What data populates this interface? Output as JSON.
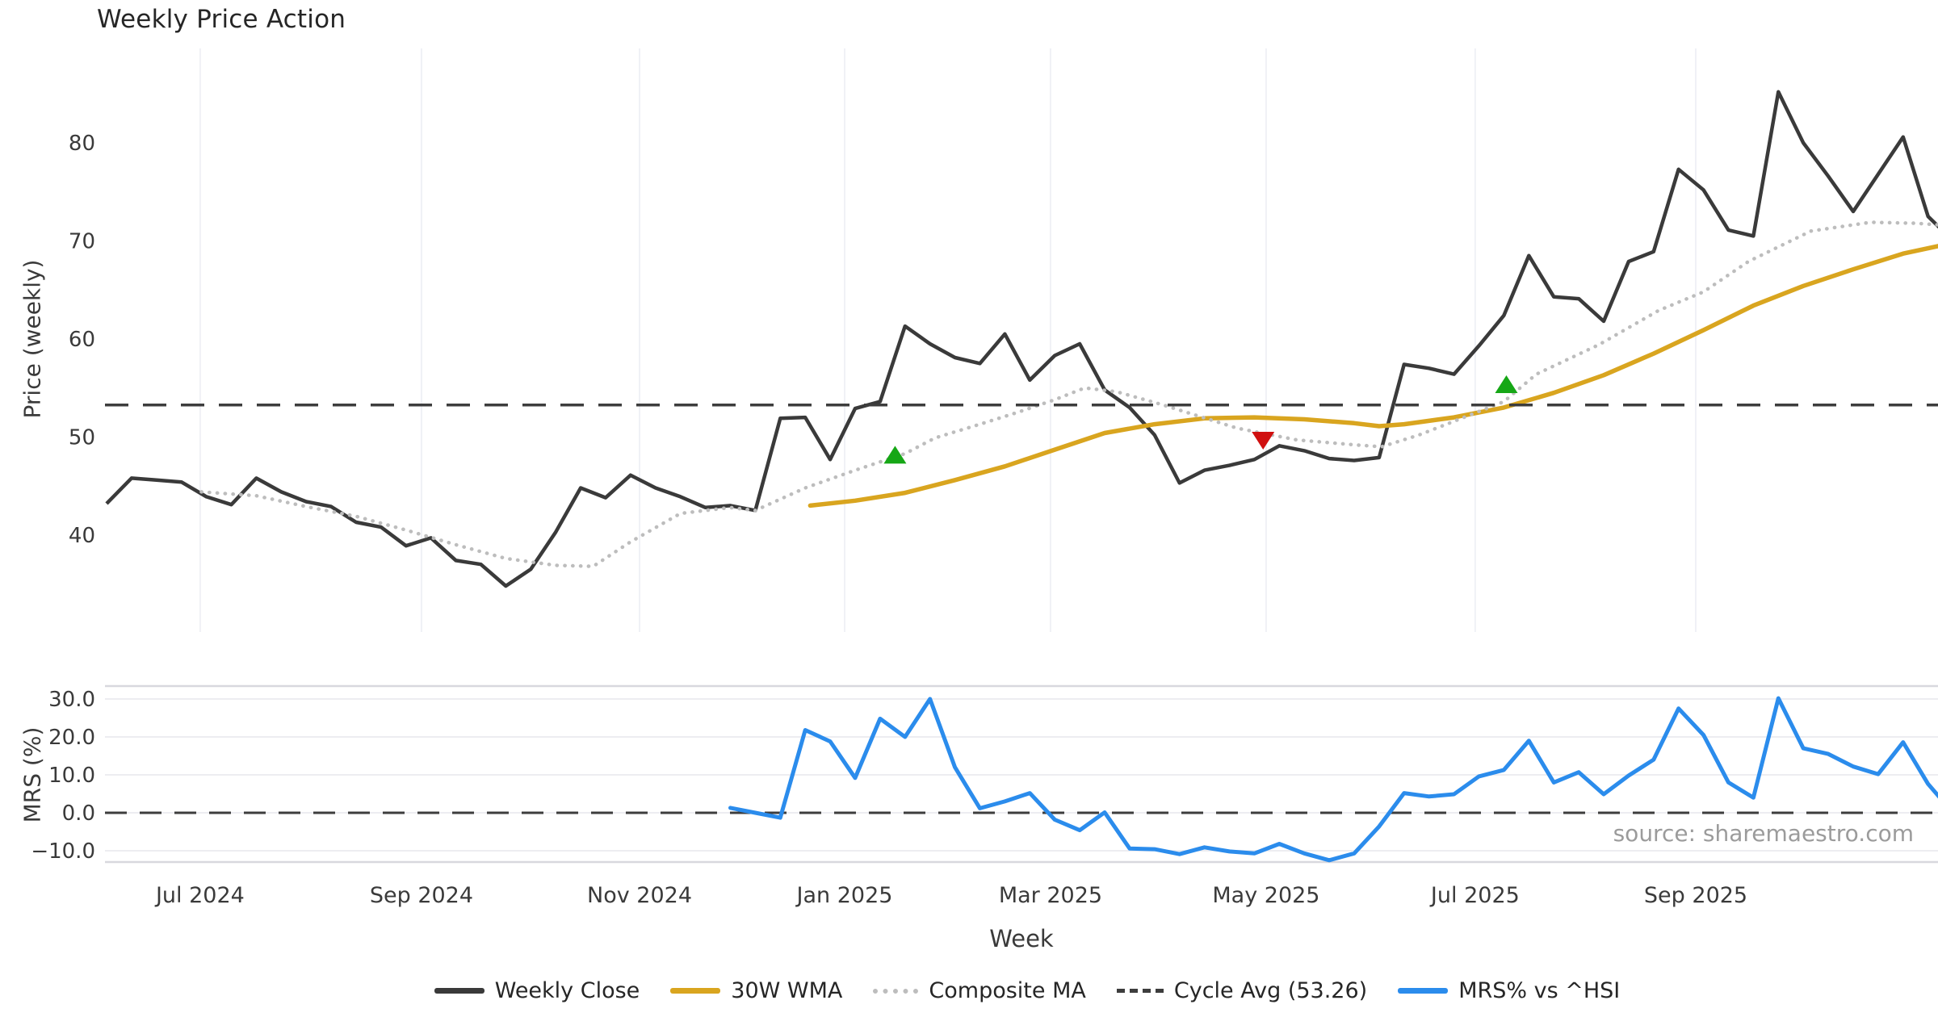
{
  "title": "Weekly Price Action",
  "xlabel": "Week",
  "source": "source: sharemaestro.com",
  "colors": {
    "close": "#3a3a3a",
    "wma": "#d9a51f",
    "composite": "#bdbdbd",
    "cycle": "#3d3d3d",
    "mrs": "#2b8cec",
    "buy_marker": "#16a716",
    "sell_marker": "#d01010",
    "grid": "#f0f1f6",
    "mrs_grid": "#ededf1",
    "spine": "#d8d8de",
    "tick_text": "#3a3a3a"
  },
  "x_axis": {
    "label": "Week",
    "start_week": "2024-06-03",
    "interval_days": 7,
    "ticks": [
      {
        "label": "Jul 2024",
        "week": 3.75
      },
      {
        "label": "Sep 2024",
        "week": 12.62
      },
      {
        "label": "Nov 2024",
        "week": 21.36
      },
      {
        "label": "Jan 2025",
        "week": 29.58
      },
      {
        "label": "Mar 2025",
        "week": 37.83
      },
      {
        "label": "May 2025",
        "week": 46.47
      },
      {
        "label": "Jul 2025",
        "week": 54.85
      },
      {
        "label": "Sep 2025",
        "week": 63.69
      }
    ]
  },
  "chart_data": [
    {
      "type": "line",
      "panel": "price",
      "title": "Weekly Price Action",
      "ylabel": "Price (weekly)",
      "ylim": [
        30.1,
        89.6
      ],
      "yticks": [
        40,
        50,
        60,
        70,
        80
      ],
      "grid": "vertical-monthly",
      "series": [
        {
          "name": "Weekly Close",
          "style": "solid",
          "start_index": 0,
          "values": [
            43.2,
            45.8,
            45.6,
            45.4,
            43.9,
            43.1,
            45.8,
            44.4,
            43.4,
            42.9,
            41.3,
            40.8,
            38.9,
            39.7,
            37.4,
            37.0,
            34.8,
            36.5,
            40.3,
            44.8,
            43.8,
            46.1,
            44.8,
            43.9,
            42.8,
            43.0,
            42.5,
            51.9,
            52.0,
            47.7,
            52.9,
            53.6,
            61.3,
            59.5,
            58.1,
            57.5,
            60.5,
            55.8,
            58.3,
            59.5,
            54.8,
            53.0,
            50.2,
            45.3,
            46.6,
            47.1,
            47.7,
            49.1,
            48.6,
            47.8,
            47.6,
            47.9,
            57.4,
            57.0,
            56.4,
            59.3,
            62.4,
            68.5,
            64.3,
            64.1,
            61.8,
            67.9,
            68.9,
            77.3,
            75.2,
            71.1,
            70.5,
            85.2,
            80.0,
            76.6,
            73.0,
            76.8,
            80.6,
            72.5,
            70.0
          ]
        },
        {
          "name": "30W WMA",
          "style": "solid",
          "points": [
            [
              28.2,
              43.0
            ],
            [
              30,
              43.5
            ],
            [
              32,
              44.3
            ],
            [
              34,
              45.6
            ],
            [
              36,
              47.0
            ],
            [
              38,
              48.7
            ],
            [
              40,
              50.4
            ],
            [
              42,
              51.3
            ],
            [
              44,
              51.9
            ],
            [
              46,
              52.0
            ],
            [
              48,
              51.8
            ],
            [
              50,
              51.4
            ],
            [
              51,
              51.1
            ],
            [
              52,
              51.3
            ],
            [
              54,
              52.0
            ],
            [
              56,
              53.0
            ],
            [
              58,
              54.5
            ],
            [
              60,
              56.3
            ],
            [
              62,
              58.5
            ],
            [
              64,
              60.9
            ],
            [
              66,
              63.4
            ],
            [
              68,
              65.4
            ],
            [
              70,
              67.1
            ],
            [
              72,
              68.7
            ],
            [
              74,
              69.8
            ]
          ]
        },
        {
          "name": "Composite MA",
          "style": "dotted",
          "points": [
            [
              3.8,
              44.4
            ],
            [
              6,
              44.0
            ],
            [
              8,
              42.9
            ],
            [
              10,
              41.9
            ],
            [
              12,
              40.5
            ],
            [
              14,
              39.0
            ],
            [
              16,
              37.6
            ],
            [
              18,
              36.9
            ],
            [
              19.5,
              36.8
            ],
            [
              21,
              39.3
            ],
            [
              23,
              42.2
            ],
            [
              25,
              42.8
            ],
            [
              26,
              42.5
            ],
            [
              28,
              44.8
            ],
            [
              30,
              46.6
            ],
            [
              32,
              48.3
            ],
            [
              33.2,
              49.9
            ],
            [
              35,
              51.3
            ],
            [
              36.5,
              52.5
            ],
            [
              38,
              53.8
            ],
            [
              39.2,
              55.0
            ],
            [
              40.5,
              54.6
            ],
            [
              42.3,
              53.3
            ],
            [
              45.3,
              50.9
            ],
            [
              47.7,
              49.7
            ],
            [
              50,
              49.2
            ],
            [
              51.1,
              49.0
            ],
            [
              52.6,
              50.2
            ],
            [
              54.4,
              52.0
            ],
            [
              56,
              53.6
            ],
            [
              57.3,
              56.4
            ],
            [
              59.8,
              59.4
            ],
            [
              62.2,
              62.9
            ],
            [
              64,
              64.8
            ],
            [
              65.8,
              67.9
            ],
            [
              68.3,
              71.0
            ],
            [
              70.7,
              71.9
            ],
            [
              72.5,
              71.8
            ],
            [
              73.6,
              71.6
            ]
          ]
        },
        {
          "name": "Cycle Avg (53.26)",
          "style": "dashed-horizontal",
          "value": 53.26
        }
      ],
      "markers": [
        {
          "shape": "triangle-up",
          "color_key": "buy_marker",
          "week": 31.6,
          "value": 48.1
        },
        {
          "shape": "triangle-down",
          "color_key": "sell_marker",
          "week": 46.35,
          "value": 49.7
        },
        {
          "shape": "triangle-up",
          "color_key": "buy_marker",
          "week": 56.1,
          "value": 55.3
        }
      ]
    },
    {
      "type": "line",
      "panel": "mrs",
      "ylabel": "MRS (%)",
      "ylim": [
        -13.0,
        33.4
      ],
      "yticks": [
        30.0,
        20.0,
        10.0,
        0.0,
        -10.0
      ],
      "grid": "horizontal",
      "zero_line": true,
      "series": [
        {
          "name": "MRS% vs ^HSI",
          "style": "solid",
          "start_index": 25,
          "values": [
            1.3,
            0.0,
            -1.3,
            21.8,
            18.8,
            9.2,
            24.8,
            20.0,
            30.0,
            12.0,
            1.2,
            3.0,
            5.2,
            -1.8,
            -4.6,
            0.1,
            -9.4,
            -9.6,
            -10.9,
            -9.1,
            -10.2,
            -10.7,
            -8.2,
            -10.7,
            -12.5,
            -10.7,
            -3.6,
            5.2,
            4.3,
            4.9,
            9.6,
            11.3,
            19.0,
            8.0,
            10.7,
            4.9,
            9.8,
            14.0,
            27.5,
            20.5,
            8.0,
            4.0,
            30.2,
            17.0,
            15.5,
            12.2,
            10.2,
            18.6,
            7.6,
            0.0
          ]
        }
      ]
    }
  ],
  "legend": {
    "items": [
      {
        "label": "Weekly Close",
        "swatch": "solid",
        "color_key": "close"
      },
      {
        "label": "30W WMA",
        "swatch": "solid",
        "color_key": "wma"
      },
      {
        "label": "Composite MA",
        "swatch": "dotted",
        "color_key": "composite"
      },
      {
        "label": "Cycle Avg (53.26)",
        "swatch": "dashed",
        "color_key": "cycle"
      },
      {
        "label": "MRS% vs ^HSI",
        "swatch": "solid",
        "color_key": "mrs"
      }
    ]
  }
}
